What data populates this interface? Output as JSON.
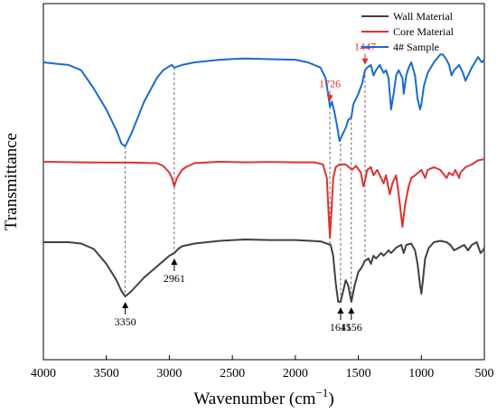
{
  "chart_data": {
    "type": "line",
    "title": "",
    "xlabel": "Wavenumber (cm",
    "xlabel_sup": "−1",
    "xlabel_close": ")",
    "ylabel": "Transmittance",
    "xlim": [
      4000,
      500
    ],
    "x_reversed": true,
    "x_ticks": [
      "4000",
      "3500",
      "3000",
      "2500",
      "2000",
      "1500",
      "1000",
      "500"
    ],
    "y_ticks_shown": false,
    "grid": false,
    "legend_position": "top-right",
    "series": [
      {
        "name": "Wall Material",
        "color": "#404040",
        "points": [
          [
            4000,
            0.0
          ],
          [
            3800,
            0.0
          ],
          [
            3700,
            -0.05
          ],
          [
            3600,
            -0.25
          ],
          [
            3500,
            -0.8
          ],
          [
            3420,
            -1.4
          ],
          [
            3380,
            -1.8
          ],
          [
            3350,
            -2.0
          ],
          [
            3300,
            -1.8
          ],
          [
            3200,
            -1.3
          ],
          [
            3100,
            -0.9
          ],
          [
            3000,
            -0.5
          ],
          [
            2961,
            -0.4
          ],
          [
            2930,
            -0.25
          ],
          [
            2900,
            -0.15
          ],
          [
            2800,
            -0.05
          ],
          [
            2600,
            0.05
          ],
          [
            2400,
            0.1
          ],
          [
            2200,
            0.08
          ],
          [
            2000,
            0.08
          ],
          [
            1800,
            0.03
          ],
          [
            1720,
            -0.1
          ],
          [
            1700,
            -0.5
          ],
          [
            1680,
            -1.5
          ],
          [
            1660,
            -2.2
          ],
          [
            1641,
            -2.2
          ],
          [
            1620,
            -1.8
          ],
          [
            1600,
            -1.4
          ],
          [
            1580,
            -1.6
          ],
          [
            1556,
            -2.2
          ],
          [
            1530,
            -1.6
          ],
          [
            1500,
            -1.1
          ],
          [
            1470,
            -0.9
          ],
          [
            1450,
            -0.7
          ],
          [
            1420,
            -0.6
          ],
          [
            1400,
            -0.8
          ],
          [
            1380,
            -0.5
          ],
          [
            1360,
            -0.6
          ],
          [
            1320,
            -0.4
          ],
          [
            1300,
            -0.5
          ],
          [
            1260,
            -0.3
          ],
          [
            1240,
            -0.4
          ],
          [
            1200,
            -0.2
          ],
          [
            1160,
            -0.1
          ],
          [
            1140,
            -0.4
          ],
          [
            1120,
            -0.1
          ],
          [
            1080,
            -0.05
          ],
          [
            1050,
            -0.3
          ],
          [
            1030,
            -0.8
          ],
          [
            1010,
            -1.6
          ],
          [
            1000,
            -1.9
          ],
          [
            990,
            -1.5
          ],
          [
            970,
            -0.6
          ],
          [
            940,
            -0.2
          ],
          [
            900,
            0.0
          ],
          [
            850,
            0.05
          ],
          [
            800,
            0.0
          ],
          [
            770,
            -0.1
          ],
          [
            740,
            -0.3
          ],
          [
            700,
            -0.2
          ],
          [
            660,
            -0.1
          ],
          [
            630,
            -0.3
          ],
          [
            600,
            -0.1
          ],
          [
            560,
            0.0
          ],
          [
            530,
            -0.4
          ],
          [
            510,
            -0.3
          ],
          [
            500,
            -0.2
          ]
        ]
      },
      {
        "name": "Core Material",
        "color": "#e03030",
        "points": [
          [
            4000,
            0.0
          ],
          [
            3700,
            -0.02
          ],
          [
            3500,
            -0.03
          ],
          [
            3300,
            -0.03
          ],
          [
            3100,
            -0.05
          ],
          [
            3050,
            -0.15
          ],
          [
            3000,
            -0.4
          ],
          [
            2980,
            -0.6
          ],
          [
            2961,
            -0.9
          ],
          [
            2940,
            -0.6
          ],
          [
            2900,
            -0.3
          ],
          [
            2870,
            -0.2
          ],
          [
            2800,
            -0.05
          ],
          [
            2600,
            0.0
          ],
          [
            2400,
            -0.02
          ],
          [
            2200,
            -0.01
          ],
          [
            2000,
            -0.02
          ],
          [
            1850,
            -0.02
          ],
          [
            1780,
            -0.1
          ],
          [
            1750,
            -0.6
          ],
          [
            1735,
            -2.0
          ],
          [
            1726,
            -2.8
          ],
          [
            1715,
            -2.0
          ],
          [
            1700,
            -0.6
          ],
          [
            1680,
            -0.2
          ],
          [
            1650,
            -0.1
          ],
          [
            1600,
            -0.1
          ],
          [
            1550,
            -0.3
          ],
          [
            1520,
            -0.15
          ],
          [
            1480,
            -0.4
          ],
          [
            1460,
            -0.9
          ],
          [
            1447,
            -0.7
          ],
          [
            1430,
            -0.3
          ],
          [
            1400,
            -0.2
          ],
          [
            1380,
            -0.5
          ],
          [
            1350,
            -0.3
          ],
          [
            1300,
            -0.8
          ],
          [
            1280,
            -0.5
          ],
          [
            1250,
            -1.2
          ],
          [
            1230,
            -0.8
          ],
          [
            1200,
            -0.5
          ],
          [
            1180,
            -1.2
          ],
          [
            1160,
            -2.0
          ],
          [
            1150,
            -2.4
          ],
          [
            1130,
            -1.6
          ],
          [
            1100,
            -0.9
          ],
          [
            1080,
            -0.6
          ],
          [
            1050,
            -0.5
          ],
          [
            1000,
            -0.3
          ],
          [
            970,
            -0.6
          ],
          [
            950,
            -0.3
          ],
          [
            900,
            -0.2
          ],
          [
            850,
            -0.3
          ],
          [
            800,
            -0.6
          ],
          [
            780,
            -0.4
          ],
          [
            750,
            -0.5
          ],
          [
            730,
            -0.3
          ],
          [
            700,
            -0.6
          ],
          [
            690,
            -0.4
          ],
          [
            650,
            -0.2
          ],
          [
            600,
            -0.1
          ],
          [
            550,
            0.05
          ],
          [
            500,
            0.1
          ]
        ]
      },
      {
        "name": "4# Sample",
        "color": "#1a6ad0",
        "points": [
          [
            4000,
            0.0
          ],
          [
            3900,
            -0.05
          ],
          [
            3800,
            -0.1
          ],
          [
            3700,
            -0.3
          ],
          [
            3600,
            -1.0
          ],
          [
            3500,
            -1.8
          ],
          [
            3420,
            -2.6
          ],
          [
            3380,
            -3.1
          ],
          [
            3350,
            -3.2
          ],
          [
            3300,
            -2.7
          ],
          [
            3200,
            -1.5
          ],
          [
            3100,
            -0.6
          ],
          [
            3050,
            -0.3
          ],
          [
            3000,
            -0.15
          ],
          [
            2980,
            -0.1
          ],
          [
            2961,
            -0.2
          ],
          [
            2930,
            -0.15
          ],
          [
            2900,
            -0.1
          ],
          [
            2800,
            0.0
          ],
          [
            2600,
            0.1
          ],
          [
            2400,
            0.15
          ],
          [
            2200,
            0.12
          ],
          [
            2000,
            0.1
          ],
          [
            1900,
            0.0
          ],
          [
            1800,
            -0.2
          ],
          [
            1760,
            -0.6
          ],
          [
            1740,
            -1.2
          ],
          [
            1726,
            -1.7
          ],
          [
            1710,
            -1.5
          ],
          [
            1690,
            -1.9
          ],
          [
            1670,
            -2.4
          ],
          [
            1650,
            -3.0
          ],
          [
            1630,
            -2.8
          ],
          [
            1600,
            -2.5
          ],
          [
            1580,
            -2.2
          ],
          [
            1556,
            -2.1
          ],
          [
            1540,
            -1.6
          ],
          [
            1500,
            -1.2
          ],
          [
            1470,
            -0.8
          ],
          [
            1447,
            -0.3
          ],
          [
            1430,
            -0.2
          ],
          [
            1400,
            -0.1
          ],
          [
            1380,
            -0.5
          ],
          [
            1360,
            -0.3
          ],
          [
            1330,
            -0.1
          ],
          [
            1300,
            -0.4
          ],
          [
            1280,
            -0.3
          ],
          [
            1260,
            -0.6
          ],
          [
            1240,
            -1.8
          ],
          [
            1220,
            -1.2
          ],
          [
            1200,
            -0.5
          ],
          [
            1180,
            -0.3
          ],
          [
            1150,
            -0.6
          ],
          [
            1140,
            -1.2
          ],
          [
            1120,
            -0.5
          ],
          [
            1100,
            -0.2
          ],
          [
            1080,
            0.0
          ],
          [
            1050,
            -0.5
          ],
          [
            1030,
            -1.4
          ],
          [
            1010,
            -1.8
          ],
          [
            1000,
            -1.6
          ],
          [
            980,
            -0.9
          ],
          [
            950,
            -0.4
          ],
          [
            900,
            0.0
          ],
          [
            850,
            0.3
          ],
          [
            830,
            0.3
          ],
          [
            800,
            0.1
          ],
          [
            780,
            -0.1
          ],
          [
            760,
            -0.5
          ],
          [
            740,
            -0.3
          ],
          [
            700,
            -0.1
          ],
          [
            670,
            -0.4
          ],
          [
            650,
            -0.7
          ],
          [
            630,
            -0.5
          ],
          [
            600,
            -0.2
          ],
          [
            550,
            0.2
          ],
          [
            520,
            0.0
          ],
          [
            500,
            0.1
          ]
        ]
      }
    ],
    "annotations": [
      {
        "text": "3350",
        "x": 3350,
        "series": 0,
        "arrow": "up",
        "color": "#000000"
      },
      {
        "text": "2961",
        "x": 2961,
        "series": 0,
        "arrow": "up",
        "color": "#000000"
      },
      {
        "text": "1641",
        "x": 1641,
        "series": 0,
        "arrow": "up",
        "color": "#000000"
      },
      {
        "text": "1556",
        "x": 1556,
        "series": 0,
        "arrow": "up",
        "color": "#000000"
      },
      {
        "text": "1726",
        "x": 1726,
        "series": 2,
        "arrow": "down",
        "color": "#e03030"
      },
      {
        "text": "1447",
        "x": 1447,
        "series": 2,
        "arrow": "down",
        "color": "#e03030"
      }
    ],
    "reference_lines": [
      3350,
      2961,
      1726,
      1641,
      1556,
      1447
    ]
  }
}
